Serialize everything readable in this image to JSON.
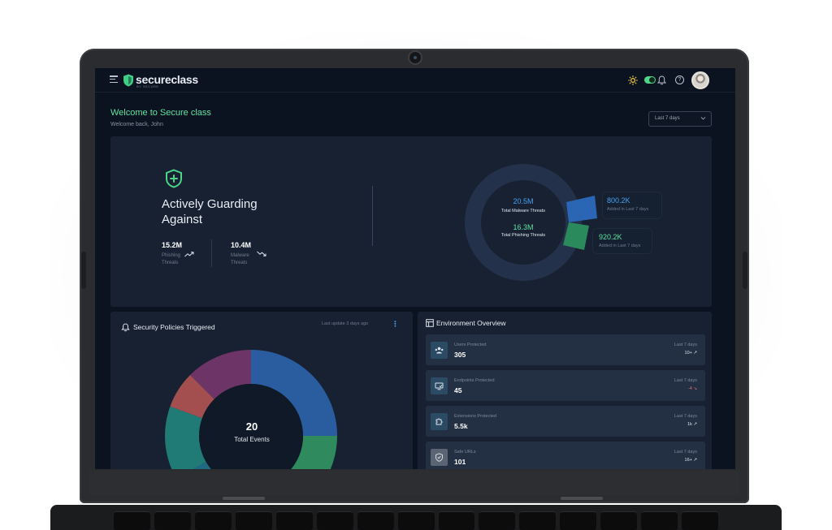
{
  "app": {
    "brand_name": "secureclass",
    "brand_tagline": "BY SECURE"
  },
  "header": {
    "welcome_title": "Welcome to Secure class",
    "welcome_subtitle": "Welcome back, John",
    "date_range": "Last 7 days"
  },
  "hero": {
    "title": "Actively Guarding Against",
    "stats": [
      {
        "value": "15.2M",
        "label": "Phishing Threats",
        "trend": "up"
      },
      {
        "value": "10.4M",
        "label": "Malware Threats",
        "trend": "down"
      }
    ],
    "donut": {
      "malware_value": "20.5M",
      "malware_label": "Total Malware Threats",
      "phishing_value": "16.3M",
      "phishing_label": "Total Phishing Threats",
      "malware_added_value": "800.2K",
      "malware_added_label": "Added in Last 7 days",
      "phishing_added_value": "920.2K",
      "phishing_added_label": "Added in Last 7 days"
    }
  },
  "policies": {
    "title": "Security Policies Triggered",
    "last_update": "Last update 3 days ago",
    "total_value": "20",
    "total_label": "Total Events",
    "colors": [
      "#2a5d9f",
      "#2f8a5e",
      "#1f6a80",
      "#a34f4f",
      "#6c3467"
    ]
  },
  "environment": {
    "title": "Environment Overview",
    "rows": [
      {
        "label": "Users Protected",
        "value": "305",
        "period": "Last 7 days",
        "change": "10+",
        "trend": "up"
      },
      {
        "label": "Endpoints Protected",
        "value": "45",
        "period": "Last 7 days",
        "change": "-4",
        "trend": "down"
      },
      {
        "label": "Extensions Protected",
        "value": "5.5k",
        "period": "Last 7 days",
        "change": "1k",
        "trend": "up"
      },
      {
        "label": "Safe URLs",
        "value": "101",
        "period": "Last 7 days",
        "change": "16+",
        "trend": "up"
      }
    ]
  }
}
